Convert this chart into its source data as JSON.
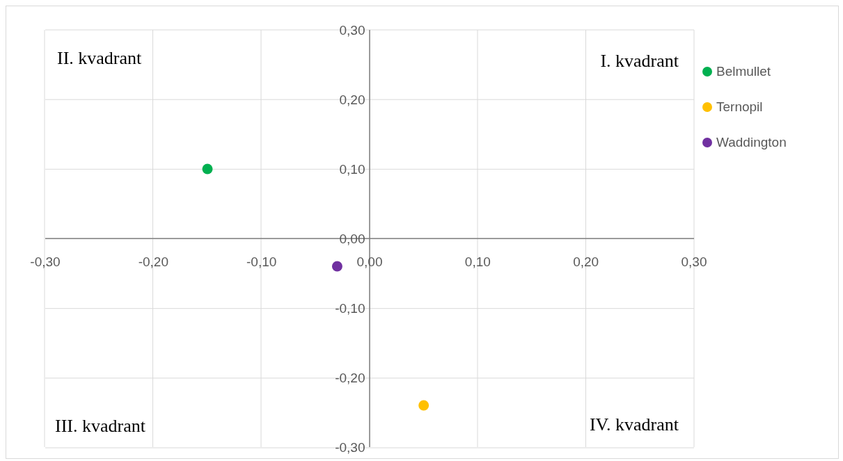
{
  "chart_data": {
    "type": "scatter",
    "annotations": [
      "II. kvadrant",
      "I. kvadrant",
      "III. kvadrant",
      "IV. kvadrant"
    ],
    "series": [
      {
        "name": "Belmullet",
        "color": "#00b050",
        "x": [
          -0.15
        ],
        "values": [
          0.1
        ]
      },
      {
        "name": "Ternopil",
        "color": "#ffc000",
        "x": [
          0.05
        ],
        "values": [
          -0.24
        ]
      },
      {
        "name": "Waddington",
        "color": "#7030a0",
        "x": [
          -0.03
        ],
        "values": [
          -0.04
        ]
      }
    ],
    "xlim": [
      -0.3,
      0.3
    ],
    "xticks": [
      {
        "value": -0.3,
        "label": "-0,30"
      },
      {
        "value": -0.2,
        "label": "-0,20"
      },
      {
        "value": -0.1,
        "label": "-0,10"
      },
      {
        "value": 0,
        "label": "0,00"
      },
      {
        "value": 0.1,
        "label": "0,10"
      },
      {
        "value": 0.2,
        "label": "0,20"
      },
      {
        "value": 0.3,
        "label": "0,30"
      }
    ],
    "ylim": [
      -0.3,
      0.3
    ],
    "yticks": [
      {
        "value": -0.3,
        "label": "-0,30"
      },
      {
        "value": -0.2,
        "label": "-0,20"
      },
      {
        "value": -0.1,
        "label": "-0,10"
      },
      {
        "value": 0,
        "label": "0,00"
      },
      {
        "value": 0.1,
        "label": "0,10"
      },
      {
        "value": 0.2,
        "label": "0,20"
      },
      {
        "value": 0.3,
        "label": "0,30"
      }
    ],
    "grid": true,
    "legend": "top right",
    "marker": "circle"
  }
}
